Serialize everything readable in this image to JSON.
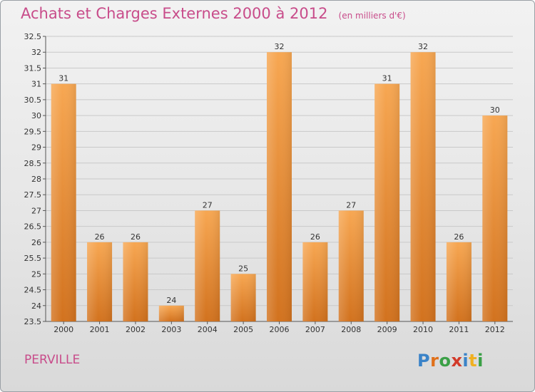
{
  "header": {
    "title": "Achats et Charges Externes 2000 à 2012",
    "unit": "(en milliers d'€)"
  },
  "footer": {
    "town": "PERVILLE",
    "logo": "Proxiti",
    "logo_letters": [
      {
        "ch": "P",
        "color": "#3a83c8"
      },
      {
        "ch": "r",
        "color": "#e0701a"
      },
      {
        "ch": "o",
        "color": "#3aa046"
      },
      {
        "ch": "x",
        "color": "#d23a2a"
      },
      {
        "ch": "i",
        "color": "#3a83c8"
      },
      {
        "ch": "t",
        "color": "#f0b020"
      },
      {
        "ch": "i",
        "color": "#3aa046"
      }
    ]
  },
  "colors": {
    "title": "#c84c8a",
    "bar_top": "#f7a752",
    "bar_bottom": "#d2721e",
    "grid": "#c9c9c9"
  },
  "chart_data": {
    "type": "bar",
    "title": "Achats et Charges Externes 2000 à 2012",
    "subtitle": "(en milliers d'€)",
    "categories": [
      "2000",
      "2001",
      "2002",
      "2003",
      "2004",
      "2005",
      "2006",
      "2007",
      "2008",
      "2009",
      "2010",
      "2011",
      "2012"
    ],
    "values": [
      31,
      26,
      26,
      24,
      27,
      25,
      32,
      26,
      27,
      31,
      32,
      26,
      30
    ],
    "ylim": [
      23.5,
      32.5
    ],
    "ytick_step": 0.5,
    "yticks": [
      "23.5",
      "24",
      "24.5",
      "25",
      "25.5",
      "26",
      "26.5",
      "27",
      "27.5",
      "28",
      "28.5",
      "29",
      "29.5",
      "30",
      "30.5",
      "31",
      "31.5",
      "32",
      "32.5"
    ],
    "grid": true,
    "xlabel": "",
    "ylabel": ""
  }
}
